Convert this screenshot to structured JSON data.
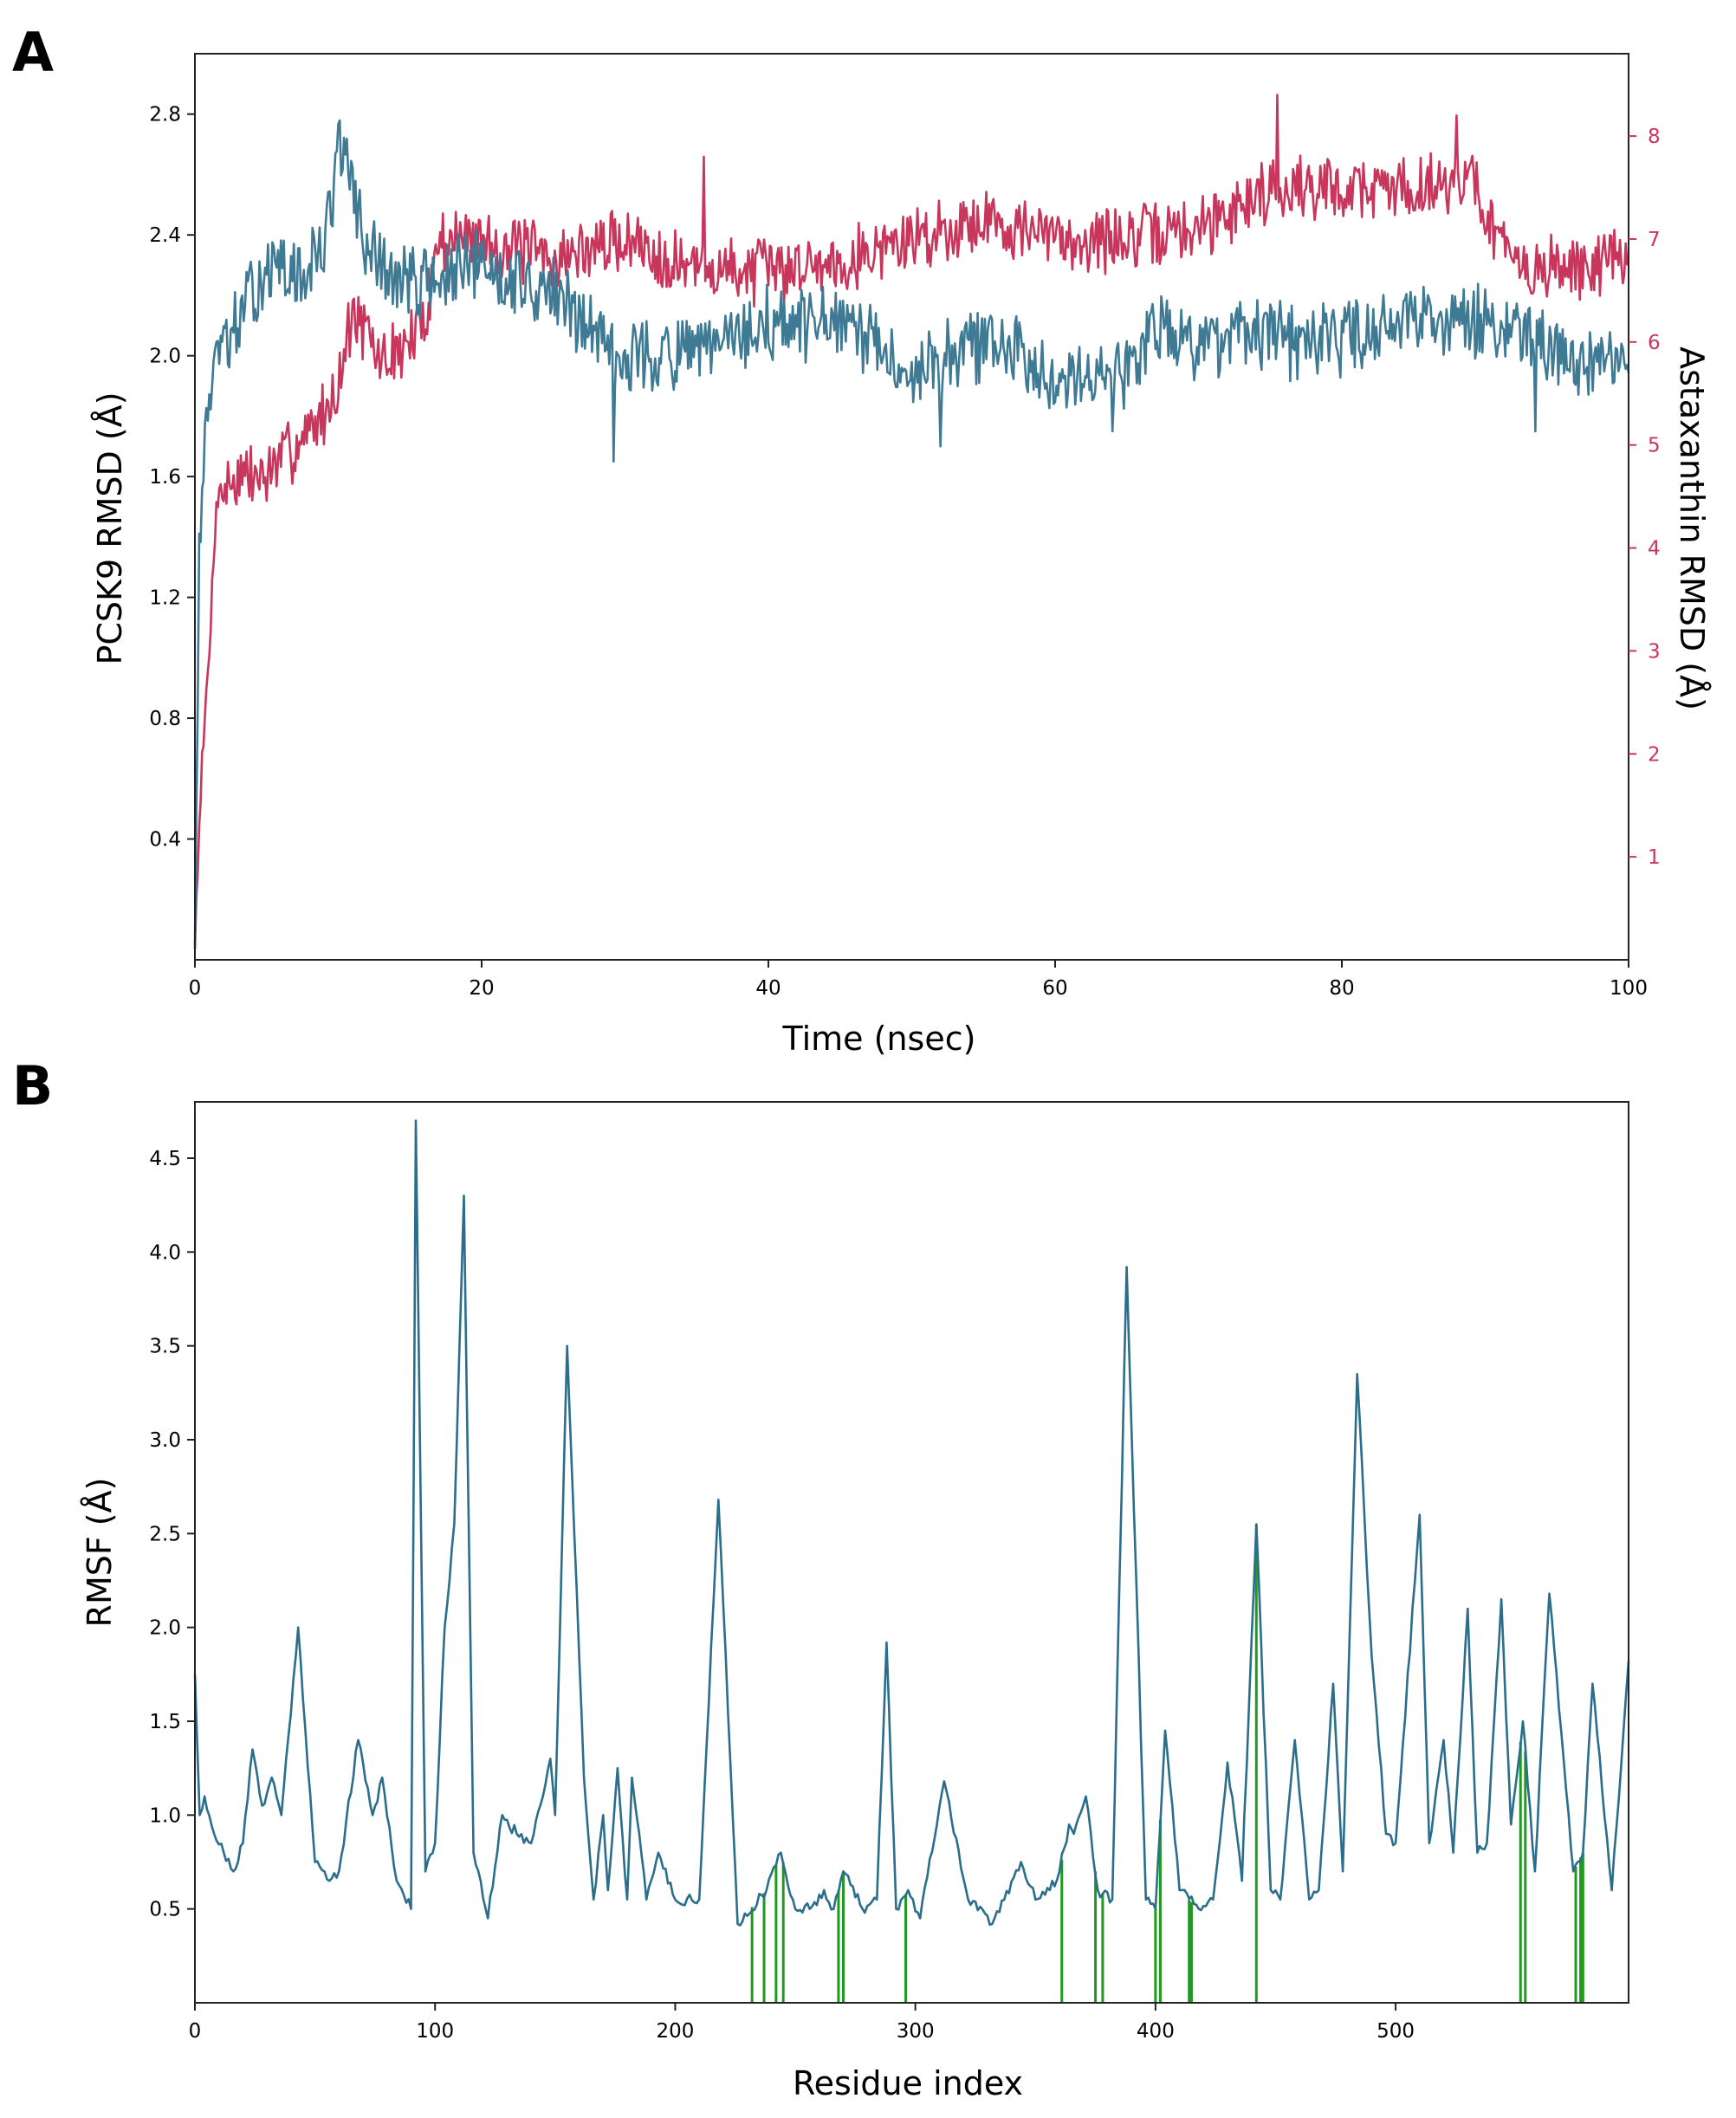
{
  "panels": {
    "a": {
      "label": "A"
    },
    "b": {
      "label": "B"
    }
  },
  "colors": {
    "protein": "#3e7a94",
    "ligand": "#c8365c",
    "rmsf": "#2a6e8c",
    "contacts": "#1f9a1f"
  },
  "chart_data": [
    {
      "type": "line",
      "panel": "A",
      "title": "",
      "xlabel": "Time (nsec)",
      "ylabel_left": "PCSK9 RMSD (Å)",
      "ylabel_right": "Astaxanthin RMSD (Å)",
      "xlim": [
        0,
        100
      ],
      "ylim_left": [
        0,
        3.0
      ],
      "ylim_right": [
        0,
        8.8
      ],
      "x_ticks": [
        0,
        20,
        40,
        60,
        80,
        100
      ],
      "y_ticks_left": [
        0.4,
        0.8,
        1.2,
        1.6,
        2.0,
        2.4,
        2.8
      ],
      "y_tick_labels_left": [
        "0.4",
        "0.8",
        "1.2",
        "1.6",
        "2.0",
        "2.4",
        "2.8"
      ],
      "y_ticks_right": [
        1,
        2,
        3,
        4,
        5,
        6,
        7,
        8
      ],
      "grid": false,
      "series": [
        {
          "name": "PCSK9 RMSD",
          "axis": "left",
          "anchors": [
            [
              0,
              0.05
            ],
            [
              0.3,
              1.35
            ],
            [
              0.8,
              1.8
            ],
            [
              1.5,
              2.0
            ],
            [
              3,
              2.1
            ],
            [
              5,
              2.3
            ],
            [
              7,
              2.25
            ],
            [
              9,
              2.35
            ],
            [
              10,
              2.7
            ],
            [
              11,
              2.55
            ],
            [
              12,
              2.35
            ],
            [
              14,
              2.25
            ],
            [
              17,
              2.25
            ],
            [
              20,
              2.3
            ],
            [
              25,
              2.2
            ],
            [
              30,
              2.0
            ],
            [
              35,
              2.0
            ],
            [
              40,
              2.1
            ],
            [
              45,
              2.1
            ],
            [
              50,
              1.95
            ],
            [
              55,
              2.05
            ],
            [
              60,
              1.95
            ],
            [
              65,
              1.95
            ],
            [
              67,
              2.1
            ],
            [
              70,
              2.05
            ],
            [
              75,
              2.05
            ],
            [
              80,
              2.05
            ],
            [
              85,
              2.15
            ],
            [
              90,
              2.1
            ],
            [
              95,
              2.0
            ],
            [
              100,
              1.95
            ]
          ],
          "dips": [
            [
              29.2,
              1.65
            ],
            [
              52,
              1.7
            ],
            [
              64,
              1.75
            ],
            [
              93.5,
              1.75
            ]
          ]
        },
        {
          "name": "Astaxanthin RMSD",
          "axis": "right",
          "anchors": [
            [
              0,
              0.1
            ],
            [
              0.3,
              1.4
            ],
            [
              1,
              3.0
            ],
            [
              1.5,
              4.5
            ],
            [
              3,
              4.7
            ],
            [
              5,
              4.7
            ],
            [
              7,
              5.0
            ],
            [
              9,
              5.3
            ],
            [
              10,
              5.6
            ],
            [
              11,
              6.3
            ],
            [
              13,
              5.8
            ],
            [
              15,
              6.0
            ],
            [
              16,
              6.2
            ],
            [
              17,
              7.0
            ],
            [
              20,
              7.0
            ],
            [
              25,
              6.8
            ],
            [
              30,
              7.0
            ],
            [
              35,
              6.7
            ],
            [
              40,
              6.7
            ],
            [
              45,
              6.8
            ],
            [
              50,
              7.0
            ],
            [
              55,
              7.2
            ],
            [
              60,
              7.0
            ],
            [
              65,
              7.0
            ],
            [
              70,
              7.1
            ],
            [
              75,
              7.5
            ],
            [
              80,
              7.5
            ],
            [
              85,
              7.5
            ],
            [
              89,
              7.6
            ],
            [
              92,
              6.7
            ],
            [
              95,
              6.7
            ],
            [
              100,
              6.8
            ]
          ],
          "spikes": [
            [
              75.5,
              8.4
            ],
            [
              88,
              8.2
            ],
            [
              35.5,
              7.8
            ]
          ]
        }
      ]
    },
    {
      "type": "line",
      "panel": "B",
      "title": "",
      "xlabel": "Residue index",
      "ylabel": "RMSF (Å)",
      "xlim": [
        0,
        597
      ],
      "ylim": [
        0,
        4.8
      ],
      "x_ticks": [
        0,
        100,
        200,
        300,
        400,
        500
      ],
      "y_ticks": [
        0.5,
        1.0,
        1.5,
        2.0,
        2.5,
        3.0,
        3.5,
        4.0,
        4.5
      ],
      "grid": false,
      "series": [
        {
          "name": "RMSF",
          "peaks": [
            [
              0,
              1.75
            ],
            [
              4,
              1.1
            ],
            [
              12,
              0.8
            ],
            [
              24,
              1.35
            ],
            [
              32,
              1.2
            ],
            [
              43,
              2.0
            ],
            [
              60,
              0.7
            ],
            [
              68,
              1.4
            ],
            [
              78,
              1.2
            ],
            [
              92,
              4.7
            ],
            [
              104,
              2.0
            ],
            [
              108,
              2.55
            ],
            [
              112,
              4.3
            ],
            [
              128,
              1.0
            ],
            [
              148,
              1.3
            ],
            [
              155,
              3.5
            ],
            [
              170,
              1.0
            ],
            [
              176,
              1.25
            ],
            [
              182,
              1.2
            ],
            [
              193,
              0.8
            ],
            [
              218,
              2.68
            ],
            [
              238,
              0.6
            ],
            [
              244,
              0.8
            ],
            [
              262,
              0.6
            ],
            [
              270,
              0.7
            ],
            [
              288,
              1.92
            ],
            [
              297,
              0.6
            ],
            [
              312,
              1.18
            ],
            [
              344,
              0.75
            ],
            [
              364,
              0.95
            ],
            [
              371,
              1.1
            ],
            [
              388,
              3.92
            ],
            [
              404,
              1.45
            ],
            [
              430,
              1.28
            ],
            [
              442,
              2.55
            ],
            [
              458,
              1.4
            ],
            [
              474,
              1.7
            ],
            [
              484,
              3.35
            ],
            [
              490,
              1.85
            ],
            [
              510,
              2.6
            ],
            [
              520,
              1.4
            ],
            [
              530,
              2.1
            ],
            [
              544,
              2.15
            ],
            [
              553,
              1.5
            ],
            [
              564,
              2.18
            ],
            [
              582,
              1.7
            ],
            [
              597,
              1.82
            ]
          ],
          "troughs": [
            [
              2,
              1.0
            ],
            [
              8,
              0.9
            ],
            [
              16,
              0.7
            ],
            [
              20,
              0.85
            ],
            [
              28,
              1.05
            ],
            [
              36,
              1.0
            ],
            [
              50,
              0.75
            ],
            [
              56,
              0.65
            ],
            [
              74,
              1.0
            ],
            [
              84,
              0.65
            ],
            [
              90,
              0.5
            ],
            [
              96,
              0.7
            ],
            [
              100,
              0.85
            ],
            [
              116,
              0.8
            ],
            [
              122,
              0.45
            ],
            [
              134,
              0.9
            ],
            [
              140,
              0.85
            ],
            [
              150,
              1.0
            ],
            [
              162,
              1.2
            ],
            [
              166,
              0.55
            ],
            [
              172,
              0.6
            ],
            [
              180,
              0.55
            ],
            [
              188,
              0.55
            ],
            [
              200,
              0.55
            ],
            [
              210,
              0.55
            ],
            [
              226,
              0.42
            ],
            [
              250,
              0.5
            ],
            [
              256,
              0.5
            ],
            [
              266,
              0.5
            ],
            [
              278,
              0.5
            ],
            [
              284,
              0.55
            ],
            [
              292,
              0.5
            ],
            [
              302,
              0.45
            ],
            [
              322,
              0.55
            ],
            [
              332,
              0.42
            ],
            [
              350,
              0.55
            ],
            [
              356,
              0.6
            ],
            [
              360,
              0.7
            ],
            [
              366,
              0.9
            ],
            [
              376,
              0.6
            ],
            [
              382,
              0.55
            ],
            [
              396,
              0.55
            ],
            [
              400,
              0.5
            ],
            [
              410,
              0.6
            ],
            [
              418,
              0.5
            ],
            [
              424,
              0.55
            ],
            [
              436,
              0.65
            ],
            [
              448,
              0.6
            ],
            [
              452,
              0.55
            ],
            [
              464,
              0.55
            ],
            [
              468,
              0.6
            ],
            [
              478,
              0.7
            ],
            [
              496,
              0.9
            ],
            [
              500,
              0.85
            ],
            [
              514,
              0.85
            ],
            [
              524,
              0.8
            ],
            [
              534,
              0.8
            ],
            [
              538,
              0.85
            ],
            [
              548,
              0.95
            ],
            [
              558,
              0.7
            ],
            [
              574,
              0.7
            ],
            [
              578,
              0.8
            ],
            [
              590,
              0.6
            ]
          ]
        }
      ],
      "contact_residues": [
        232,
        237,
        242,
        245,
        268,
        270,
        296,
        361,
        375,
        378,
        400,
        402,
        414,
        415,
        442,
        552,
        554,
        575,
        577,
        578
      ]
    }
  ]
}
